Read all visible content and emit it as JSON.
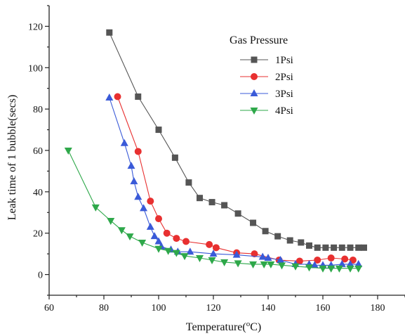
{
  "chart_data": {
    "type": "line",
    "xlabel": "Temperature(",
    "xlabel_sup": "o",
    "xlabel_unit": "C)",
    "ylabel": "Leak time of 1 bubble(secs)",
    "xlim": [
      60,
      190
    ],
    "ylim": [
      -10,
      130
    ],
    "x_ticks": [
      60,
      80,
      100,
      120,
      140,
      160,
      180
    ],
    "y_ticks": [
      0,
      20,
      40,
      60,
      80,
      100,
      120
    ],
    "grid": false,
    "legend": {
      "title": "Gas Pressure",
      "placement": "top-right"
    },
    "series": [
      {
        "name": "1Psi",
        "marker": "square",
        "color": "#555555",
        "points": [
          [
            82,
            117
          ],
          [
            92.5,
            86
          ],
          [
            100,
            70
          ],
          [
            106,
            56.5
          ],
          [
            111,
            44.5
          ],
          [
            115,
            37
          ],
          [
            119.5,
            35
          ],
          [
            124,
            33.5
          ],
          [
            129,
            29.5
          ],
          [
            134.5,
            25
          ],
          [
            139,
            21
          ],
          [
            143.5,
            18.5
          ],
          [
            148,
            16.5
          ],
          [
            152,
            15.5
          ],
          [
            155,
            14
          ],
          [
            158,
            13
          ],
          [
            161,
            13
          ],
          [
            164,
            13
          ],
          [
            167,
            13
          ],
          [
            170,
            13
          ],
          [
            173,
            13
          ],
          [
            175,
            13
          ]
        ]
      },
      {
        "name": "2Psi",
        "marker": "circle",
        "color": "#e83030",
        "points": [
          [
            85,
            86
          ],
          [
            92.5,
            59.5
          ],
          [
            97,
            35.5
          ],
          [
            100,
            27
          ],
          [
            103,
            20
          ],
          [
            106.5,
            17.5
          ],
          [
            110,
            16
          ],
          [
            118.5,
            14.5
          ],
          [
            121,
            13
          ],
          [
            128.5,
            10.5
          ],
          [
            135,
            10
          ],
          [
            144,
            7
          ],
          [
            151.5,
            6.5
          ],
          [
            158,
            7
          ],
          [
            163,
            8
          ],
          [
            168,
            7.5
          ],
          [
            171,
            7
          ]
        ]
      },
      {
        "name": "3Psi",
        "marker": "triangle-up",
        "color": "#3a5ad8",
        "points": [
          [
            82,
            85.5
          ],
          [
            87.5,
            63.5
          ],
          [
            90,
            52.5
          ],
          [
            91,
            45
          ],
          [
            92.5,
            37.5
          ],
          [
            94.5,
            32
          ],
          [
            97,
            23
          ],
          [
            98.5,
            18.5
          ],
          [
            100,
            16
          ],
          [
            101,
            13.5
          ],
          [
            104.5,
            12
          ],
          [
            107,
            11
          ],
          [
            111.5,
            11
          ],
          [
            120,
            10
          ],
          [
            128.5,
            9.5
          ],
          [
            138,
            8.5
          ],
          [
            140,
            8
          ],
          [
            144.5,
            7
          ],
          [
            150,
            5
          ],
          [
            155,
            5
          ],
          [
            157,
            4.5
          ],
          [
            160,
            4.5
          ],
          [
            163,
            4.5
          ],
          [
            167,
            5
          ],
          [
            170,
            5
          ],
          [
            173,
            5
          ]
        ]
      },
      {
        "name": "4Psi",
        "marker": "triangle-down",
        "color": "#2ea84a",
        "points": [
          [
            67,
            60
          ],
          [
            77,
            32.5
          ],
          [
            82.5,
            26
          ],
          [
            86.5,
            21.5
          ],
          [
            89.5,
            18.5
          ],
          [
            94,
            15.5
          ],
          [
            100,
            12.5
          ],
          [
            103.5,
            11.5
          ],
          [
            106.5,
            10.5
          ],
          [
            109.5,
            9
          ],
          [
            115,
            8
          ],
          [
            119.5,
            7
          ],
          [
            124,
            6
          ],
          [
            129,
            5.5
          ],
          [
            134.5,
            5
          ],
          [
            138.5,
            5
          ],
          [
            141,
            5
          ],
          [
            145,
            4.5
          ],
          [
            150,
            4
          ],
          [
            155,
            3.5
          ],
          [
            160,
            3
          ],
          [
            163,
            3
          ],
          [
            166,
            3
          ],
          [
            170,
            3
          ],
          [
            173,
            3
          ]
        ]
      }
    ]
  }
}
